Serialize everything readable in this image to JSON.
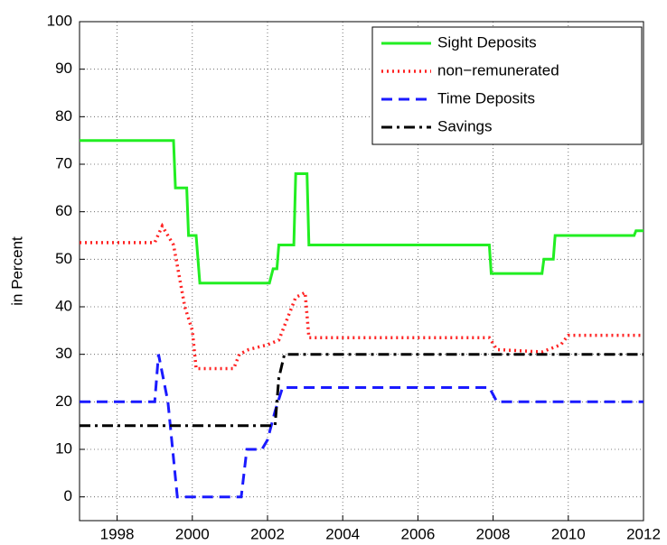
{
  "chart_data": {
    "type": "line",
    "ylabel": "in Percent",
    "xlim": [
      1997,
      2012
    ],
    "xticks": [
      1998,
      2000,
      2002,
      2004,
      2006,
      2008,
      2010,
      2012
    ],
    "ylim": [
      -5,
      100
    ],
    "yticks": [
      0,
      10,
      20,
      30,
      40,
      50,
      60,
      70,
      80,
      90,
      100
    ],
    "grid": true,
    "legend": "upper right",
    "series": [
      {
        "name": "Sight Deposits",
        "color": "#22ee22",
        "style": "solid",
        "x": [
          1997,
          1999.5,
          1999.55,
          1999.85,
          1999.9,
          2000.1,
          2000.2,
          2002.05,
          2002.15,
          2002.25,
          2002.3,
          2002.7,
          2002.75,
          2003.05,
          2003.1,
          2007.9,
          2007.95,
          2009.3,
          2009.35,
          2009.6,
          2009.65,
          2011.75,
          2011.8,
          2012
        ],
        "values": [
          75,
          75,
          65,
          65,
          55,
          55,
          45,
          45,
          48,
          48,
          53,
          53,
          68,
          68,
          53,
          53,
          47,
          47,
          50,
          50,
          55,
          55,
          56,
          56
        ]
      },
      {
        "name": "non−remunerated",
        "color": "#ff2222",
        "style": "dotted",
        "x": [
          1997,
          1999,
          1999.2,
          1999.5,
          1999.8,
          2000,
          2000.1,
          2001.1,
          2001.25,
          2001.5,
          2002,
          2002.3,
          2002.75,
          2003,
          2003.1,
          2007.9,
          2008.1,
          2009.3,
          2009.8,
          2010,
          2012
        ],
        "values": [
          53.5,
          53.5,
          57,
          53,
          40,
          35,
          27,
          27,
          30,
          31,
          32,
          33,
          42,
          43,
          33.5,
          33.5,
          31,
          30.5,
          32,
          34,
          34
        ]
      },
      {
        "name": "Time Deposits",
        "color": "#1a1aff",
        "style": "dashed",
        "x": [
          1997,
          1999,
          1999.1,
          1999.35,
          1999.6,
          2001.3,
          2001.45,
          2001.85,
          2002,
          2002.2,
          2002.4,
          2007.9,
          2008.1,
          2012
        ],
        "values": [
          20,
          20,
          30,
          20,
          0,
          0,
          10,
          10,
          12,
          18,
          23,
          23,
          20,
          20
        ]
      },
      {
        "name": "Savings",
        "color": "#000000",
        "style": "dashdot",
        "x": [
          1997,
          2002.2,
          2002.3,
          2002.45,
          2012
        ],
        "values": [
          15,
          15,
          25,
          30,
          30
        ]
      }
    ]
  }
}
